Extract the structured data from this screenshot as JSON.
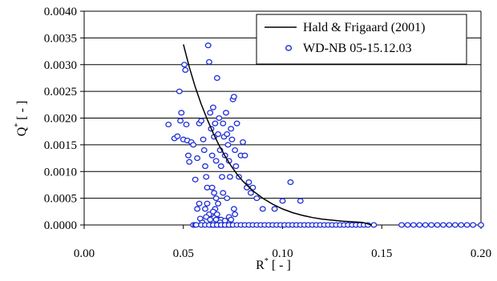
{
  "chart_data": {
    "type": "scatter",
    "xlabel_main": "R",
    "xlabel_sup": "*",
    "xlabel_unit": " [ - ]",
    "ylabel_main": "Q",
    "ylabel_sup": "*",
    "ylabel_unit": " [ - ]",
    "xlim": [
      0.0,
      0.2
    ],
    "ylim": [
      0.0,
      0.004
    ],
    "xticks": [
      "0.00",
      "0.05",
      "0.10",
      "0.15",
      "0.20"
    ],
    "xtick_values": [
      0.0,
      0.05,
      0.1,
      0.15,
      0.2
    ],
    "yticks": [
      "0.0000",
      "0.0005",
      "0.0010",
      "0.0015",
      "0.0020",
      "0.0025",
      "0.0030",
      "0.0035",
      "0.0040"
    ],
    "ytick_values": [
      0.0,
      0.0005,
      0.001,
      0.0015,
      0.002,
      0.0025,
      0.003,
      0.0035,
      0.004
    ],
    "grid": "horizontal",
    "legend_position": "top-right",
    "colors": {
      "line": "#000000",
      "marker": "#1f2fd6"
    },
    "series": [
      {
        "name": "Hald & Frigaard (2001)",
        "kind": "line",
        "x": [
          0.05,
          0.053,
          0.056,
          0.059,
          0.062,
          0.065,
          0.068,
          0.071,
          0.074,
          0.077,
          0.08,
          0.085,
          0.09,
          0.095,
          0.1,
          0.105,
          0.11,
          0.115,
          0.12,
          0.125,
          0.13,
          0.135,
          0.14,
          0.145
        ],
        "y": [
          0.00338,
          0.00295,
          0.00258,
          0.00226,
          0.00198,
          0.00172,
          0.00149,
          0.00129,
          0.00111,
          0.00095,
          0.00082,
          0.00064,
          0.0005,
          0.00039,
          0.0003,
          0.00023,
          0.00018,
          0.00014,
          0.00011,
          9e-05,
          7e-05,
          6e-05,
          5e-05,
          0.0
        ]
      },
      {
        "name": "WD-NB 05-15.12.03",
        "kind": "scatter",
        "x": [
          0.0425,
          0.0455,
          0.047,
          0.048,
          0.0485,
          0.049,
          0.05,
          0.0505,
          0.051,
          0.0515,
          0.052,
          0.0525,
          0.053,
          0.054,
          0.055,
          0.056,
          0.057,
          0.058,
          0.059,
          0.06,
          0.0605,
          0.061,
          0.0615,
          0.062,
          0.0625,
          0.063,
          0.0635,
          0.064,
          0.0645,
          0.065,
          0.0655,
          0.066,
          0.0665,
          0.067,
          0.0675,
          0.068,
          0.0685,
          0.069,
          0.0695,
          0.07,
          0.0705,
          0.071,
          0.0715,
          0.072,
          0.0725,
          0.073,
          0.0735,
          0.074,
          0.0745,
          0.075,
          0.0755,
          0.076,
          0.0765,
          0.077,
          0.078,
          0.079,
          0.08,
          0.081,
          0.082,
          0.083,
          0.084,
          0.085,
          0.087,
          0.09,
          0.096,
          0.1,
          0.104,
          0.109,
          0.0645,
          0.0655,
          0.0665,
          0.0675,
          0.066,
          0.064,
          0.068,
          0.07,
          0.072,
          0.062,
          0.061,
          0.063,
          0.0665,
          0.065,
          0.067,
          0.069,
          0.058,
          0.057,
          0.0615,
          0.0635,
          0.0685,
          0.071,
          0.073,
          0.0755,
          0.0595,
          0.0585,
          0.074,
          0.076,
          0.055,
          0.056,
          0.065,
          0.066,
          0.064,
          0.068,
          0.07,
          0.072,
          0.074
        ],
        "y": [
          0.00188,
          0.00162,
          0.00166,
          0.0025,
          0.00195,
          0.0021,
          0.0016,
          0.003,
          0.0029,
          0.00188,
          0.00158,
          0.0013,
          0.00118,
          0.00155,
          0.0015,
          0.00085,
          0.00125,
          0.0019,
          0.00195,
          0.0016,
          0.0014,
          0.0011,
          0.0009,
          0.0007,
          0.00336,
          0.00305,
          0.0021,
          0.0018,
          0.0013,
          0.0022,
          0.00165,
          0.0019,
          0.0012,
          0.00275,
          0.0017,
          0.002,
          0.0014,
          0.0011,
          0.0009,
          0.0019,
          0.00165,
          0.0013,
          0.0021,
          0.0017,
          0.0015,
          0.0012,
          0.0009,
          0.0018,
          0.0016,
          0.00235,
          0.0024,
          0.0014,
          0.0011,
          0.0019,
          0.0009,
          0.0013,
          0.00155,
          0.0013,
          0.0007,
          0.0008,
          0.0006,
          0.0007,
          0.0005,
          0.0003,
          0.0003,
          0.00045,
          0.0008,
          0.00045,
          0.0007,
          0.0006,
          0.0005,
          0.0004,
          0.0003,
          0.0002,
          0.0001,
          0.0006,
          0.0005,
          0.0004,
          0.0003,
          0.0002,
          0.0001,
          0.00025,
          0.0002,
          0.0001,
          0.0004,
          0.0003,
          0.00015,
          0.0001,
          5e-05,
          8e-05,
          0.00015,
          0.0003,
          5e-05,
          0.00012,
          0.0001,
          0.0002,
          0.0,
          0.0,
          0.0,
          0.0,
          0.0,
          0.0,
          0.0,
          0.0,
          0.0
        ],
        "zero_cluster_x": [
          0.0565,
          0.059,
          0.061,
          0.063,
          0.065,
          0.067,
          0.069,
          0.071,
          0.073,
          0.075,
          0.077,
          0.079,
          0.081,
          0.083,
          0.085,
          0.087,
          0.089,
          0.091,
          0.093,
          0.095,
          0.097,
          0.099,
          0.101,
          0.103,
          0.105,
          0.107,
          0.109,
          0.111,
          0.113,
          0.115,
          0.117,
          0.119,
          0.121,
          0.123,
          0.125,
          0.127,
          0.129,
          0.131,
          0.133,
          0.135,
          0.137,
          0.139,
          0.141,
          0.143,
          0.146,
          0.16,
          0.163,
          0.166,
          0.169,
          0.172,
          0.175,
          0.178,
          0.181,
          0.184,
          0.187,
          0.19,
          0.193,
          0.196,
          0.2
        ]
      }
    ]
  }
}
